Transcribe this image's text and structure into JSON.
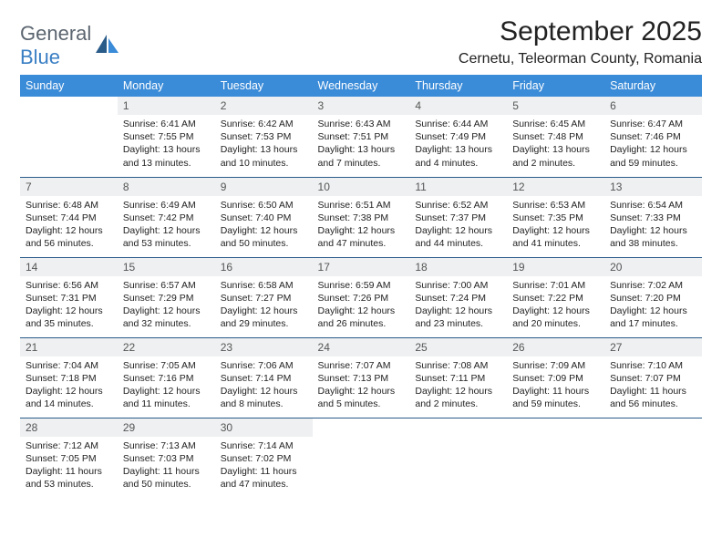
{
  "logo": {
    "word1": "General",
    "word2": "Blue"
  },
  "title": "September 2025",
  "location": "Cernetu, Teleorman County, Romania",
  "colors": {
    "header_bg": "#3a8bd8",
    "header_text": "#ffffff",
    "daynum_bg": "#eef0f1",
    "row_border": "#2a5c8a",
    "logo_gray": "#5c6670",
    "logo_blue": "#3a7fc4"
  },
  "weekdays": [
    "Sunday",
    "Monday",
    "Tuesday",
    "Wednesday",
    "Thursday",
    "Friday",
    "Saturday"
  ],
  "weeks": [
    [
      null,
      {
        "n": "1",
        "sr": "6:41 AM",
        "ss": "7:55 PM",
        "dl": "13 hours and 13 minutes."
      },
      {
        "n": "2",
        "sr": "6:42 AM",
        "ss": "7:53 PM",
        "dl": "13 hours and 10 minutes."
      },
      {
        "n": "3",
        "sr": "6:43 AM",
        "ss": "7:51 PM",
        "dl": "13 hours and 7 minutes."
      },
      {
        "n": "4",
        "sr": "6:44 AM",
        "ss": "7:49 PM",
        "dl": "13 hours and 4 minutes."
      },
      {
        "n": "5",
        "sr": "6:45 AM",
        "ss": "7:48 PM",
        "dl": "13 hours and 2 minutes."
      },
      {
        "n": "6",
        "sr": "6:47 AM",
        "ss": "7:46 PM",
        "dl": "12 hours and 59 minutes."
      }
    ],
    [
      {
        "n": "7",
        "sr": "6:48 AM",
        "ss": "7:44 PM",
        "dl": "12 hours and 56 minutes."
      },
      {
        "n": "8",
        "sr": "6:49 AM",
        "ss": "7:42 PM",
        "dl": "12 hours and 53 minutes."
      },
      {
        "n": "9",
        "sr": "6:50 AM",
        "ss": "7:40 PM",
        "dl": "12 hours and 50 minutes."
      },
      {
        "n": "10",
        "sr": "6:51 AM",
        "ss": "7:38 PM",
        "dl": "12 hours and 47 minutes."
      },
      {
        "n": "11",
        "sr": "6:52 AM",
        "ss": "7:37 PM",
        "dl": "12 hours and 44 minutes."
      },
      {
        "n": "12",
        "sr": "6:53 AM",
        "ss": "7:35 PM",
        "dl": "12 hours and 41 minutes."
      },
      {
        "n": "13",
        "sr": "6:54 AM",
        "ss": "7:33 PM",
        "dl": "12 hours and 38 minutes."
      }
    ],
    [
      {
        "n": "14",
        "sr": "6:56 AM",
        "ss": "7:31 PM",
        "dl": "12 hours and 35 minutes."
      },
      {
        "n": "15",
        "sr": "6:57 AM",
        "ss": "7:29 PM",
        "dl": "12 hours and 32 minutes."
      },
      {
        "n": "16",
        "sr": "6:58 AM",
        "ss": "7:27 PM",
        "dl": "12 hours and 29 minutes."
      },
      {
        "n": "17",
        "sr": "6:59 AM",
        "ss": "7:26 PM",
        "dl": "12 hours and 26 minutes."
      },
      {
        "n": "18",
        "sr": "7:00 AM",
        "ss": "7:24 PM",
        "dl": "12 hours and 23 minutes."
      },
      {
        "n": "19",
        "sr": "7:01 AM",
        "ss": "7:22 PM",
        "dl": "12 hours and 20 minutes."
      },
      {
        "n": "20",
        "sr": "7:02 AM",
        "ss": "7:20 PM",
        "dl": "12 hours and 17 minutes."
      }
    ],
    [
      {
        "n": "21",
        "sr": "7:04 AM",
        "ss": "7:18 PM",
        "dl": "12 hours and 14 minutes."
      },
      {
        "n": "22",
        "sr": "7:05 AM",
        "ss": "7:16 PM",
        "dl": "12 hours and 11 minutes."
      },
      {
        "n": "23",
        "sr": "7:06 AM",
        "ss": "7:14 PM",
        "dl": "12 hours and 8 minutes."
      },
      {
        "n": "24",
        "sr": "7:07 AM",
        "ss": "7:13 PM",
        "dl": "12 hours and 5 minutes."
      },
      {
        "n": "25",
        "sr": "7:08 AM",
        "ss": "7:11 PM",
        "dl": "12 hours and 2 minutes."
      },
      {
        "n": "26",
        "sr": "7:09 AM",
        "ss": "7:09 PM",
        "dl": "11 hours and 59 minutes."
      },
      {
        "n": "27",
        "sr": "7:10 AM",
        "ss": "7:07 PM",
        "dl": "11 hours and 56 minutes."
      }
    ],
    [
      {
        "n": "28",
        "sr": "7:12 AM",
        "ss": "7:05 PM",
        "dl": "11 hours and 53 minutes."
      },
      {
        "n": "29",
        "sr": "7:13 AM",
        "ss": "7:03 PM",
        "dl": "11 hours and 50 minutes."
      },
      {
        "n": "30",
        "sr": "7:14 AM",
        "ss": "7:02 PM",
        "dl": "11 hours and 47 minutes."
      },
      null,
      null,
      null,
      null
    ]
  ],
  "labels": {
    "sunrise": "Sunrise:",
    "sunset": "Sunset:",
    "daylight": "Daylight:"
  }
}
